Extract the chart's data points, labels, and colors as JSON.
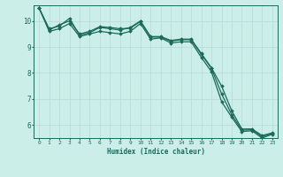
{
  "xlabel": "Humidex (Indice chaleur)",
  "background_color": "#cceee8",
  "grid_color": "#bbddda",
  "line_color": "#1a6b5a",
  "xlim": [
    -0.5,
    23.5
  ],
  "ylim": [
    5.5,
    10.6
  ],
  "yticks": [
    6,
    7,
    8,
    9,
    10
  ],
  "xticks": [
    0,
    1,
    2,
    3,
    4,
    5,
    6,
    7,
    8,
    9,
    10,
    11,
    12,
    13,
    14,
    15,
    16,
    17,
    18,
    19,
    20,
    21,
    22,
    23
  ],
  "series": [
    [
      10.5,
      9.7,
      9.8,
      10.1,
      9.45,
      9.55,
      9.75,
      9.7,
      9.65,
      9.75,
      10.0,
      9.4,
      9.4,
      9.25,
      9.3,
      9.3,
      8.75,
      8.2,
      7.5,
      6.55,
      5.85,
      5.85,
      5.6,
      5.7
    ],
    [
      10.5,
      9.65,
      9.85,
      10.0,
      9.5,
      9.6,
      9.78,
      9.75,
      9.7,
      9.72,
      9.98,
      9.38,
      9.38,
      9.22,
      9.28,
      9.28,
      8.72,
      8.18,
      7.2,
      6.4,
      5.8,
      5.82,
      5.55,
      5.68
    ],
    [
      10.5,
      9.6,
      9.7,
      9.9,
      9.4,
      9.5,
      9.6,
      9.55,
      9.5,
      9.6,
      9.9,
      9.3,
      9.35,
      9.15,
      9.2,
      9.2,
      8.6,
      8.05,
      6.9,
      6.3,
      5.75,
      5.78,
      5.5,
      5.65
    ]
  ]
}
